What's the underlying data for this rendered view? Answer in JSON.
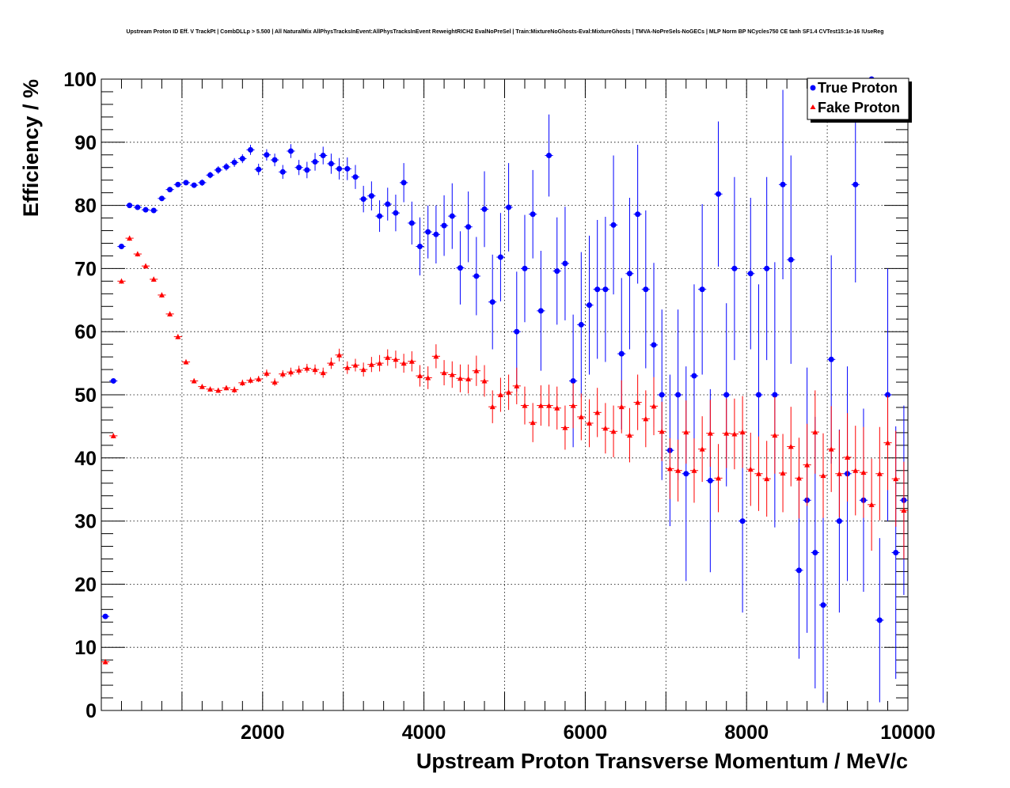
{
  "chart_data": {
    "type": "scatter",
    "title": "Upstream Proton ID Eff. V TrackPt | CombDLLp > 5.500 | All NaturalMix AllPhysTracksInEvent:AllPhysTracksInEvent ReweightRICH2 EvalNoPreSel | Train:MixtureNoGhosts-Eval:MixtureGhosts | TMVA-NoPreSels-NoGECs | MLP Norm BP NCycles750 CE tanh SF1.4 CVTest15:1e-16 !UseReg",
    "xlabel": "Upstream Proton Transverse Momentum / MeV/c",
    "ylabel": "Efficiency / %",
    "xlim": [
      0,
      10000
    ],
    "ylim": [
      0,
      100
    ],
    "xticks": [
      2000,
      4000,
      6000,
      8000,
      10000
    ],
    "yticks": [
      0,
      10,
      20,
      30,
      40,
      50,
      60,
      70,
      80,
      90,
      100
    ],
    "grid": true,
    "legend_position": "top-right",
    "series": [
      {
        "name": "True Proton",
        "color": "#0000ff",
        "marker": "circle",
        "x": [
          50,
          150,
          250,
          350,
          450,
          550,
          650,
          750,
          850,
          950,
          1050,
          1150,
          1250,
          1350,
          1450,
          1550,
          1650,
          1750,
          1850,
          1950,
          2050,
          2150,
          2250,
          2350,
          2450,
          2550,
          2650,
          2750,
          2850,
          2950,
          3050,
          3150,
          3250,
          3350,
          3450,
          3550,
          3650,
          3750,
          3850,
          3950,
          4050,
          4150,
          4250,
          4350,
          4450,
          4550,
          4650,
          4750,
          4850,
          4950,
          5050,
          5150,
          5250,
          5350,
          5450,
          5550,
          5650,
          5750,
          5850,
          5950,
          6050,
          6150,
          6250,
          6350,
          6450,
          6550,
          6650,
          6750,
          6850,
          6950,
          7050,
          7150,
          7250,
          7350,
          7450,
          7550,
          7650,
          7750,
          7850,
          7950,
          8050,
          8150,
          8250,
          8350,
          8450,
          8550,
          8650,
          8750,
          8850,
          8950,
          9050,
          9150,
          9250,
          9350,
          9450,
          9550,
          9650,
          9750,
          9850,
          9950
        ],
        "y": [
          14.9,
          52.2,
          73.5,
          80.0,
          79.7,
          79.3,
          79.2,
          81.1,
          82.5,
          83.3,
          83.6,
          83.2,
          83.6,
          84.8,
          85.6,
          86.1,
          86.8,
          87.4,
          88.8,
          85.7,
          88.0,
          87.2,
          85.3,
          88.6,
          86.0,
          85.6,
          86.9,
          87.9,
          86.6,
          85.8,
          85.8,
          84.5,
          81.0,
          81.5,
          78.3,
          80.2,
          78.8,
          83.6,
          77.2,
          73.5,
          75.8,
          75.4,
          76.8,
          78.3,
          70.1,
          76.6,
          68.8,
          79.4,
          64.7,
          71.8,
          79.7,
          60.0,
          70.0,
          78.6,
          63.3,
          87.9,
          69.6,
          70.8,
          52.2,
          61.1,
          64.2,
          66.7,
          66.7,
          76.9,
          56.5,
          69.2,
          78.6,
          66.7,
          57.9,
          50.0,
          41.2,
          50.0,
          37.5,
          53.0,
          66.7,
          36.4,
          81.8,
          50.0,
          70.0,
          30.0,
          69.2,
          50.0,
          70.0,
          50.0,
          83.3,
          71.4,
          22.2,
          33.3,
          25.0,
          16.7,
          55.6,
          30.0,
          37.5,
          83.3,
          33.3,
          100.0,
          14.3,
          50.0,
          25.0,
          33.3
        ],
        "err": [
          0.3,
          0.3,
          0.3,
          0.3,
          0.3,
          0.3,
          0.3,
          0.4,
          0.4,
          0.4,
          0.4,
          0.4,
          0.5,
          0.5,
          0.6,
          0.6,
          0.7,
          0.7,
          0.8,
          0.9,
          0.9,
          1.0,
          1.1,
          1.1,
          1.2,
          1.3,
          1.4,
          1.4,
          1.6,
          1.7,
          1.8,
          1.9,
          2.1,
          2.3,
          2.5,
          2.6,
          2.9,
          3.1,
          3.4,
          4.6,
          4.2,
          4.6,
          4.8,
          5.2,
          5.8,
          5.6,
          6.2,
          6.0,
          7.5,
          7.0,
          7.0,
          9.5,
          8.5,
          7.0,
          9.5,
          6.5,
          8.5,
          9.0,
          10.5,
          11.5,
          11.0,
          11.0,
          11.5,
          11.0,
          12.0,
          12.0,
          11.0,
          12.5,
          13.0,
          13.5,
          12.0,
          13.5,
          17.0,
          14.5,
          13.5,
          14.5,
          11.5,
          14.5,
          14.5,
          14.5,
          12.0,
          17.5,
          14.5,
          21.0,
          15.0,
          16.5,
          14.0,
          21.0,
          21.5,
          15.5,
          16.5,
          14.5,
          17.0,
          15.5,
          14.5,
          0.0,
          13.0,
          20.0,
          20.0,
          15.0
        ]
      },
      {
        "name": "Fake Proton",
        "color": "#ff0000",
        "marker": "triangle",
        "x": [
          50,
          150,
          250,
          350,
          450,
          550,
          650,
          750,
          850,
          950,
          1050,
          1150,
          1250,
          1350,
          1450,
          1550,
          1650,
          1750,
          1850,
          1950,
          2050,
          2150,
          2250,
          2350,
          2450,
          2550,
          2650,
          2750,
          2850,
          2950,
          3050,
          3150,
          3250,
          3350,
          3450,
          3550,
          3650,
          3750,
          3850,
          3950,
          4050,
          4150,
          4250,
          4350,
          4450,
          4550,
          4650,
          4750,
          4850,
          4950,
          5050,
          5150,
          5250,
          5350,
          5450,
          5550,
          5650,
          5750,
          5850,
          5950,
          6050,
          6150,
          6250,
          6350,
          6450,
          6550,
          6650,
          6750,
          6850,
          6950,
          7050,
          7150,
          7250,
          7350,
          7450,
          7550,
          7650,
          7750,
          7850,
          7950,
          8050,
          8150,
          8250,
          8350,
          8450,
          8550,
          8650,
          8750,
          8850,
          8950,
          9050,
          9150,
          9250,
          9350,
          9450,
          9550,
          9650,
          9750,
          9850,
          9950
        ],
        "y": [
          7.7,
          43.5,
          68.0,
          74.8,
          72.3,
          70.4,
          68.3,
          65.8,
          62.8,
          59.2,
          55.2,
          52.2,
          51.3,
          50.9,
          50.7,
          51.1,
          50.8,
          51.9,
          52.3,
          52.5,
          53.4,
          52.0,
          53.3,
          53.6,
          53.9,
          54.2,
          54.0,
          53.5,
          55.0,
          56.3,
          54.3,
          54.7,
          54.0,
          54.8,
          55.0,
          55.9,
          55.6,
          55.0,
          55.3,
          53.0,
          52.7,
          56.1,
          53.5,
          53.2,
          52.6,
          52.5,
          53.8,
          52.2,
          48.1,
          50.0,
          50.4,
          51.4,
          48.3,
          45.6,
          48.3,
          48.3,
          47.9,
          44.8,
          48.3,
          46.5,
          45.5,
          47.2,
          44.7,
          44.2,
          48.1,
          43.6,
          48.8,
          46.2,
          48.2,
          44.2,
          38.3,
          38.0,
          44.1,
          38.0,
          41.4,
          43.9,
          36.8,
          43.9,
          43.8,
          44.1,
          38.2,
          37.5,
          36.7,
          43.6,
          37.6,
          41.8,
          36.8,
          38.9,
          44.1,
          37.2,
          41.4,
          37.5,
          40.1,
          38.0,
          37.7,
          32.6,
          37.5,
          42.4,
          36.7,
          31.7
        ],
        "err": [
          0.4,
          0.4,
          0.4,
          0.4,
          0.4,
          0.4,
          0.4,
          0.4,
          0.4,
          0.4,
          0.4,
          0.4,
          0.4,
          0.4,
          0.4,
          0.4,
          0.5,
          0.5,
          0.5,
          0.5,
          0.6,
          0.6,
          0.6,
          0.7,
          0.7,
          0.7,
          0.8,
          0.8,
          0.9,
          1.0,
          1.0,
          1.0,
          1.1,
          1.2,
          1.3,
          1.3,
          1.4,
          1.5,
          1.6,
          1.7,
          1.8,
          1.9,
          2.0,
          2.1,
          2.2,
          2.3,
          2.4,
          2.5,
          2.6,
          2.7,
          2.8,
          2.9,
          3.0,
          3.1,
          3.2,
          3.3,
          3.4,
          3.5,
          3.6,
          3.7,
          3.8,
          3.9,
          4.0,
          4.1,
          4.2,
          4.3,
          4.4,
          4.5,
          4.6,
          4.7,
          4.8,
          4.9,
          5.0,
          5.1,
          5.2,
          5.3,
          5.4,
          5.5,
          5.6,
          5.7,
          5.8,
          5.9,
          6.0,
          6.1,
          6.2,
          6.3,
          6.4,
          6.5,
          6.6,
          6.7,
          6.8,
          6.9,
          7.0,
          7.1,
          7.2,
          7.3,
          7.4,
          7.5,
          7.6,
          7.7
        ]
      }
    ]
  }
}
